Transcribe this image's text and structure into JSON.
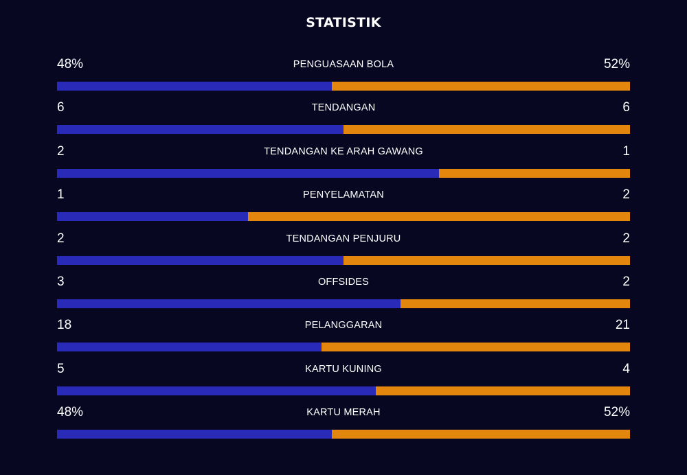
{
  "title": "STATISTIK",
  "colors": {
    "background": "#070722",
    "home": "#2a2ab8",
    "away": "#e3860e",
    "text": "#ffffff"
  },
  "chart_data": {
    "type": "bar",
    "title": "STATISTIK",
    "categories": [
      "PENGUASAAN BOLA",
      "TENDANGAN",
      "TENDANGAN KE ARAH GAWANG",
      "PENYELAMATAN",
      "TENDANGAN PENJURU",
      "OFFSIDES",
      "PELANGGARAN",
      "KARTU KUNING",
      "KARTU MERAH"
    ],
    "series": [
      {
        "values": [
          "48%",
          "6",
          "2",
          "1",
          "2",
          "3",
          "18",
          "5",
          "48%"
        ],
        "fill_fraction": [
          0.48,
          0.5,
          0.667,
          0.333,
          0.5,
          0.6,
          0.462,
          0.556,
          0.48
        ],
        "color": "#2a2ab8"
      },
      {
        "values": [
          "52%",
          "6",
          "1",
          "2",
          "2",
          "2",
          "21",
          "4",
          "52%"
        ],
        "fill_fraction": [
          0.52,
          0.5,
          0.333,
          0.667,
          0.5,
          0.4,
          0.538,
          0.444,
          0.52
        ],
        "color": "#e3860e"
      }
    ],
    "legend": "none",
    "grid": false
  }
}
